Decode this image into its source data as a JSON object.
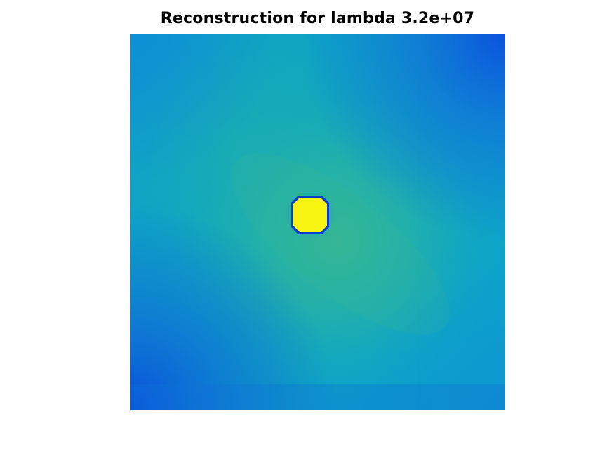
{
  "figure": {
    "title": "Reconstruction for lambda 3.2e+07"
  },
  "colors": {
    "background": "#ffffff",
    "deep_blue": "#0b58e0",
    "mid_blue": "#1a8ad6",
    "teal": "#0aa5c4",
    "teal_green": "#27b0a8",
    "green": "#3dba8c",
    "object_yellow": "#f8f512",
    "object_edge": "#0c3ccc"
  }
}
